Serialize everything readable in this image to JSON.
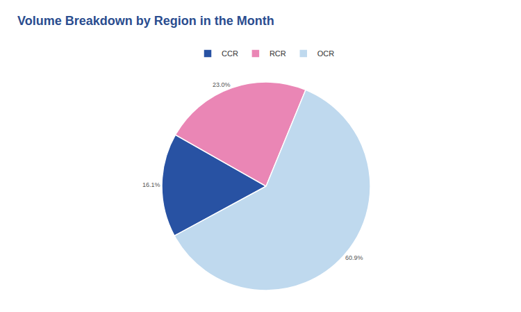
{
  "chart_data": {
    "type": "pie",
    "title": "Volume Breakdown by Region in the Month",
    "categories": [
      "CCR",
      "RCR",
      "OCR"
    ],
    "values": [
      16.1,
      23.0,
      60.9
    ],
    "value_labels": [
      "16.1%",
      "23.0%",
      "60.9%"
    ],
    "colors": [
      "#2852a3",
      "#ea86b5",
      "#bfd9ee"
    ],
    "legend": "top",
    "data_labels": true
  }
}
